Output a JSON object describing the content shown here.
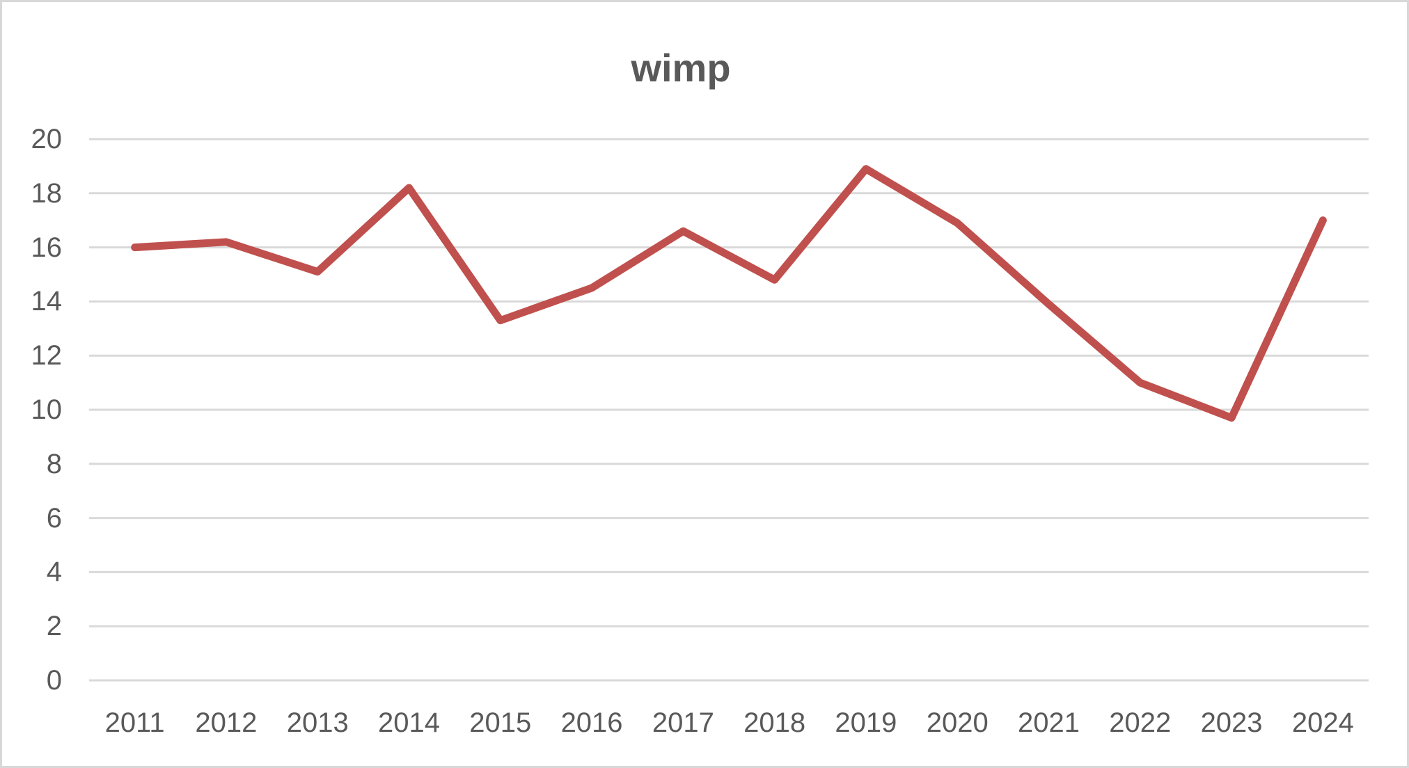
{
  "chart_data": {
    "type": "line",
    "title": "wimp",
    "categories": [
      "2011",
      "2012",
      "2013",
      "2014",
      "2015",
      "2016",
      "2017",
      "2018",
      "2019",
      "2020",
      "2021",
      "2022",
      "2023",
      "2024"
    ],
    "series": [
      {
        "name": "wimp",
        "values": [
          16.0,
          16.2,
          15.1,
          18.2,
          13.3,
          14.5,
          16.6,
          14.8,
          18.9,
          16.9,
          13.9,
          11.0,
          9.7,
          17.0
        ]
      }
    ],
    "xlabel": "",
    "ylabel": "",
    "ylim": [
      0,
      20
    ],
    "ytick_step": 2,
    "ytick_labels": [
      "0",
      "2",
      "4",
      "6",
      "8",
      "10",
      "12",
      "14",
      "16",
      "18",
      "20"
    ],
    "grid": "horizontal",
    "legend_position": "none",
    "colors": {
      "line": "#C0504D",
      "gridline": "#D9D9D9",
      "text": "#595959",
      "title_text": "#595959",
      "border": "#D8D8D8",
      "background": "#FFFFFF"
    }
  }
}
